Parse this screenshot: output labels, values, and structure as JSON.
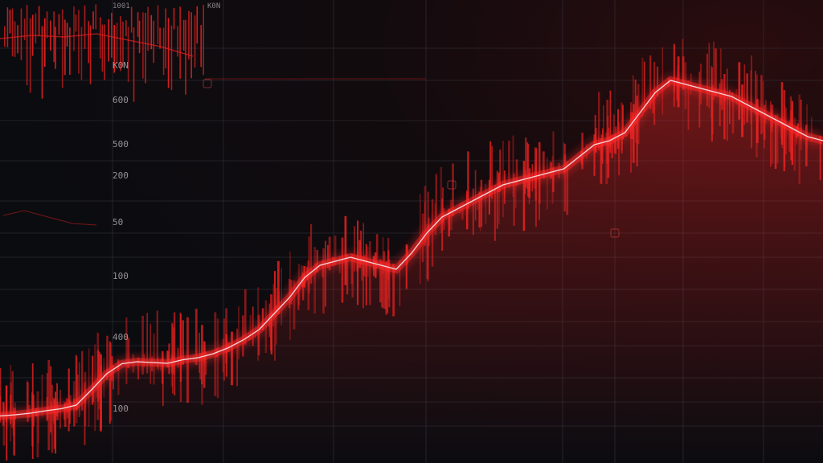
{
  "chart_data": {
    "type": "line",
    "title": "",
    "xlabel": "",
    "ylabel": "",
    "ylim": [
      0,
      1000
    ],
    "grid": true,
    "legend": "none",
    "y_tick_labels": [
      "K0N",
      "600",
      "500",
      "200",
      "50",
      "100",
      "400",
      "100"
    ],
    "top_labels": [
      "1001",
      "K0N"
    ],
    "series": [
      {
        "values": [
          45,
          48,
          52,
          58,
          63,
          72,
          110,
          150,
          175,
          180,
          178,
          176,
          185,
          190,
          200,
          215,
          235,
          260,
          300,
          340,
          390,
          420,
          430,
          440,
          430,
          420,
          410,
          450,
          500,
          540,
          560,
          580,
          600,
          620,
          630,
          640,
          650,
          660,
          690,
          720,
          730,
          750,
          800,
          850,
          880,
          870,
          860,
          850,
          840,
          820,
          800,
          780,
          760,
          740,
          730
        ]
      }
    ],
    "colors": {
      "background": "#0b0c10",
      "line_core": "#f2d6da",
      "line_glow": "#ff2a2a",
      "grid": "#3a3a44",
      "spikes": "#e0201f"
    }
  }
}
